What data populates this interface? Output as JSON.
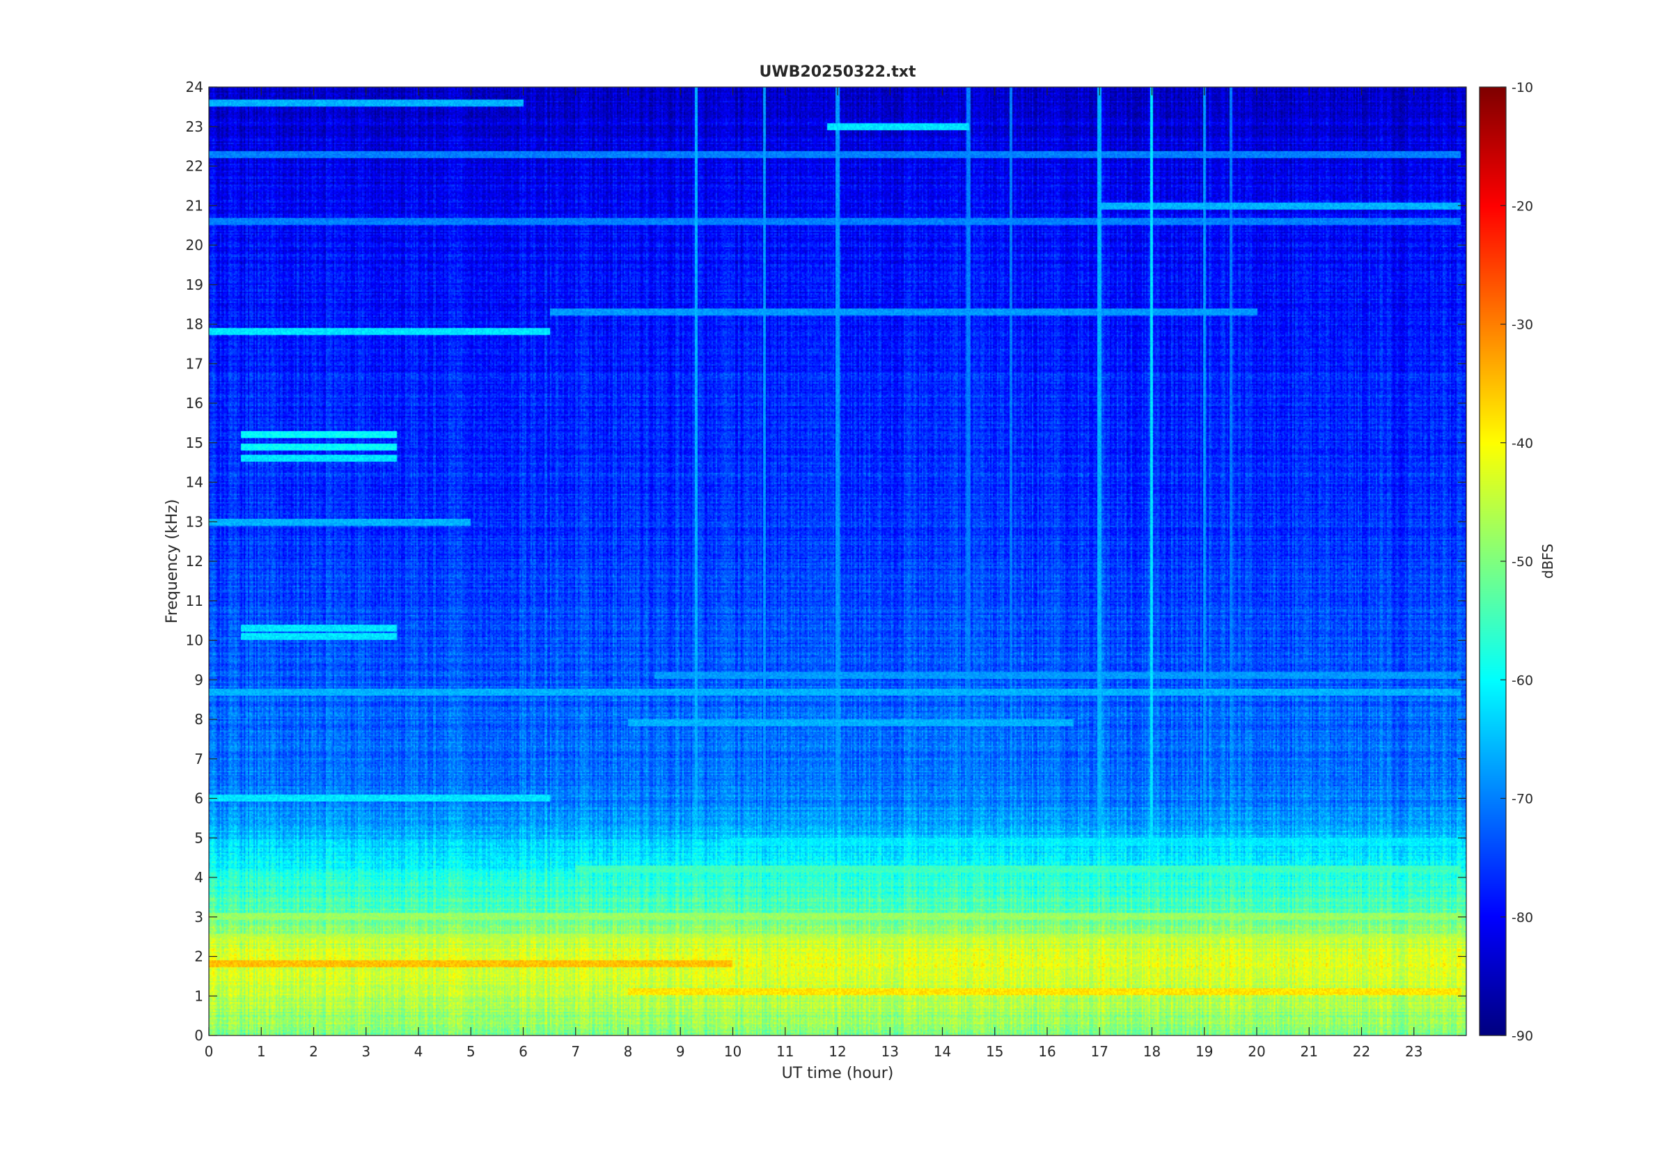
{
  "chart_data": {
    "type": "heatmap",
    "title": "UWB20250322.txt",
    "xlabel": "UT time (hour)",
    "ylabel": "Frequency (kHz)",
    "xlim": [
      0,
      24
    ],
    "ylim": [
      0,
      24
    ],
    "x_ticks": [
      0,
      1,
      2,
      3,
      4,
      5,
      6,
      7,
      8,
      9,
      10,
      11,
      12,
      13,
      14,
      15,
      16,
      17,
      18,
      19,
      20,
      21,
      22,
      23
    ],
    "y_ticks": [
      0,
      1,
      2,
      3,
      4,
      5,
      6,
      7,
      8,
      9,
      10,
      11,
      12,
      13,
      14,
      15,
      16,
      17,
      18,
      19,
      20,
      21,
      22,
      23,
      24
    ],
    "colorbar": {
      "label": "dBFS",
      "range": [
        -90,
        -10
      ],
      "ticks": [
        -90,
        -80,
        -70,
        -60,
        -50,
        -40,
        -30,
        -20,
        -10
      ],
      "colormap": "jet"
    },
    "grid": false,
    "background_level_dBFS_by_frequency": [
      {
        "frequency_khz": 0.0,
        "level": -50
      },
      {
        "frequency_khz": 1.0,
        "level": -45
      },
      {
        "frequency_khz": 2.0,
        "level": -42
      },
      {
        "frequency_khz": 3.0,
        "level": -52
      },
      {
        "frequency_khz": 4.0,
        "level": -58
      },
      {
        "frequency_khz": 5.0,
        "level": -65
      },
      {
        "frequency_khz": 6.0,
        "level": -70
      },
      {
        "frequency_khz": 9.0,
        "level": -73
      },
      {
        "frequency_khz": 13.0,
        "level": -76
      },
      {
        "frequency_khz": 18.0,
        "level": -78
      },
      {
        "frequency_khz": 21.0,
        "level": -80
      },
      {
        "frequency_khz": 24.0,
        "level": -84
      }
    ],
    "bands": [
      {
        "freq_khz": 1.8,
        "t_start": 0.0,
        "t_end": 10.0,
        "level": -35
      },
      {
        "freq_khz": 1.1,
        "t_start": 8.0,
        "t_end": 23.9,
        "level": -38
      },
      {
        "freq_khz": 2.5,
        "t_start": 0.0,
        "t_end": 23.9,
        "level": -46
      },
      {
        "freq_khz": 3.0,
        "t_start": 0.0,
        "t_end": 23.9,
        "level": -48
      },
      {
        "freq_khz": 4.2,
        "t_start": 7.0,
        "t_end": 23.9,
        "level": -55
      },
      {
        "freq_khz": 4.9,
        "t_start": 10.0,
        "t_end": 23.9,
        "level": -62
      },
      {
        "freq_khz": 6.0,
        "t_start": 0.0,
        "t_end": 6.5,
        "level": -62
      },
      {
        "freq_khz": 7.9,
        "t_start": 8.0,
        "t_end": 16.5,
        "level": -66
      },
      {
        "freq_khz": 8.7,
        "t_start": 0.0,
        "t_end": 23.9,
        "level": -66
      },
      {
        "freq_khz": 9.1,
        "t_start": 8.5,
        "t_end": 23.9,
        "level": -68
      },
      {
        "freq_khz": 10.1,
        "t_start": 0.6,
        "t_end": 3.6,
        "level": -62
      },
      {
        "freq_khz": 10.3,
        "t_start": 0.6,
        "t_end": 3.6,
        "level": -62
      },
      {
        "freq_khz": 13.0,
        "t_start": 0.0,
        "t_end": 5.0,
        "level": -66
      },
      {
        "freq_khz": 14.6,
        "t_start": 0.6,
        "t_end": 3.6,
        "level": -62
      },
      {
        "freq_khz": 14.9,
        "t_start": 0.6,
        "t_end": 3.6,
        "level": -60
      },
      {
        "freq_khz": 15.2,
        "t_start": 0.6,
        "t_end": 3.6,
        "level": -60
      },
      {
        "freq_khz": 17.8,
        "t_start": 0.0,
        "t_end": 6.5,
        "level": -62
      },
      {
        "freq_khz": 18.3,
        "t_start": 6.5,
        "t_end": 20.0,
        "level": -68
      },
      {
        "freq_khz": 20.6,
        "t_start": 0.0,
        "t_end": 23.9,
        "level": -70
      },
      {
        "freq_khz": 21.0,
        "t_start": 17.0,
        "t_end": 23.9,
        "level": -66
      },
      {
        "freq_khz": 22.3,
        "t_start": 0.0,
        "t_end": 23.9,
        "level": -70
      },
      {
        "freq_khz": 23.0,
        "t_start": 11.8,
        "t_end": 14.5,
        "level": -62
      },
      {
        "freq_khz": 23.6,
        "t_start": 0.0,
        "t_end": 6.0,
        "level": -66
      }
    ],
    "impulses": [
      {
        "time_hour": 9.3,
        "level": -66
      },
      {
        "time_hour": 10.6,
        "level": -68
      },
      {
        "time_hour": 12.0,
        "level": -68
      },
      {
        "time_hour": 14.5,
        "level": -70
      },
      {
        "time_hour": 15.3,
        "level": -70
      },
      {
        "time_hour": 17.0,
        "level": -66
      },
      {
        "time_hour": 18.0,
        "level": -62
      },
      {
        "time_hour": 19.0,
        "level": -68
      },
      {
        "time_hour": 19.5,
        "level": -70
      }
    ]
  }
}
